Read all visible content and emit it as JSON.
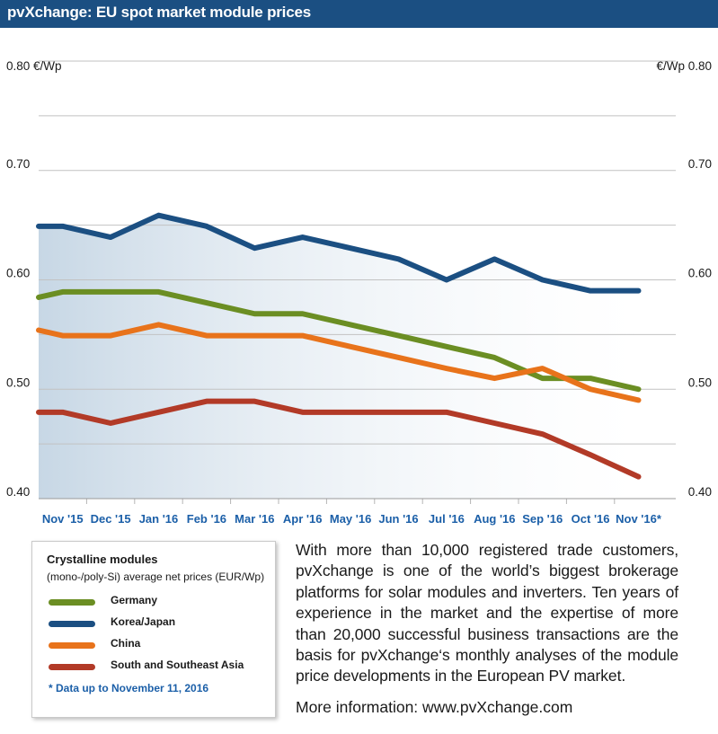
{
  "header": {
    "title": "pvXchange: EU spot market module prices"
  },
  "chart_data": {
    "type": "line",
    "y_unit_left": "€/Wp",
    "y_unit_right": "€/Wp",
    "ylim": [
      0.4,
      0.8
    ],
    "y_ticks": [
      "0.40",
      "0.50",
      "0.60",
      "0.70",
      "0.80"
    ],
    "grid": true,
    "x_labels": [
      "Nov '15",
      "Dec '15",
      "Jan '16",
      "Feb '16",
      "Mar '16",
      "Apr '16",
      "May '16",
      "Jun '16",
      "Jul '16",
      "Aug '16",
      "Sep '16",
      "Oct '16",
      "Nov '16*"
    ],
    "x": [
      0,
      0.5,
      1.5,
      2.5,
      3.5,
      4.5,
      5.5,
      6.5,
      7.5,
      8.5,
      9.5,
      10.5,
      11.5,
      12.5
    ],
    "series": [
      {
        "name": "Germany",
        "color": "#6b8e23",
        "values": [
          0.584,
          0.589,
          0.589,
          0.589,
          0.579,
          0.569,
          0.569,
          0.559,
          0.549,
          0.539,
          0.529,
          0.51,
          0.51,
          0.5
        ]
      },
      {
        "name": "Korea/Japan",
        "color": "#1b4f82",
        "values": [
          0.649,
          0.649,
          0.639,
          0.659,
          0.649,
          0.629,
          0.639,
          0.629,
          0.619,
          0.6,
          0.619,
          0.6,
          0.59,
          0.59
        ]
      },
      {
        "name": "China",
        "color": "#e8731b",
        "values": [
          0.554,
          0.549,
          0.549,
          0.559,
          0.549,
          0.549,
          0.549,
          0.539,
          0.529,
          0.519,
          0.51,
          0.519,
          0.5,
          0.49
        ]
      },
      {
        "name": "South and Southeast Asia",
        "color": "#b23a27",
        "values": [
          0.479,
          0.479,
          0.469,
          0.479,
          0.489,
          0.489,
          0.479,
          0.479,
          0.479,
          0.479,
          0.469,
          0.459,
          0.44,
          0.42
        ]
      }
    ]
  },
  "legend": {
    "title": "Crystalline modules",
    "subtitle": "(mono-/poly-Si) average net prices (EUR/Wp)",
    "items": [
      {
        "label": "Germany",
        "color": "#6b8e23"
      },
      {
        "label": "Korea/Japan",
        "color": "#1b4f82"
      },
      {
        "label": "China",
        "color": "#e8731b"
      },
      {
        "label": "South and Southeast Asia",
        "color": "#b23a27"
      }
    ],
    "note": "* Data up to November 11, 2016"
  },
  "description": {
    "text": "With more than 10,000 registered trade customers, pvXchange is one of the world’s biggest brokerage platforms for solar modules and inverters. Ten years of experience in the market and the expertise of more than 20,000 successful business transactions are the basis for pvXchange‘s monthly analyses of the module price developments in the European PV market.",
    "more": "More information: www.pvXchange.com"
  }
}
